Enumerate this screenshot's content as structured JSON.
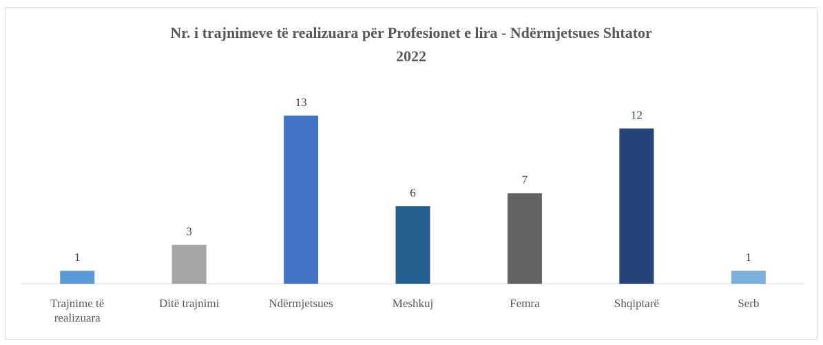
{
  "chart_data": {
    "type": "bar",
    "title": "Nr. i trajnimeve të realizuara për Profesionet e lira - Ndërmjetsues Shtator 2022",
    "categories": [
      "Trajnime të realizuara",
      "Ditë trajnimi",
      "Ndërmjetsues",
      "Meshkuj",
      "Femra",
      "Shqiptarë",
      "Serb"
    ],
    "values": [
      1,
      3,
      13,
      6,
      7,
      12,
      1
    ],
    "colors": [
      "#5b9bd5",
      "#a5a5a5",
      "#4472c4",
      "#255e91",
      "#636363",
      "#264478",
      "#7cafdd"
    ],
    "ylim": [
      0,
      14
    ]
  }
}
